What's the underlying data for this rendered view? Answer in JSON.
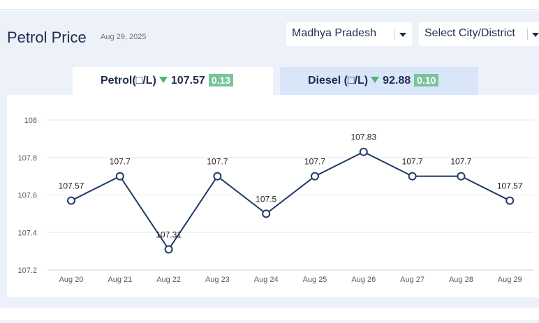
{
  "header": {
    "title": "Petrol Price",
    "date": "Aug 29, 2025"
  },
  "filters": {
    "state": "Madhya Pradesh",
    "city_placeholder": "Select City/District"
  },
  "tabs": [
    {
      "fuel": "Petrol",
      "unit": "(□/L)",
      "price": "107.57",
      "change": "0.13",
      "direction": "down",
      "active": true
    },
    {
      "fuel": "Diesel",
      "unit": " (□/L)",
      "price": "92.88",
      "change": "0.10",
      "direction": "down",
      "active": false
    }
  ],
  "colors": {
    "line": "#1f3a66",
    "down_indicator": "#49b57c",
    "change_badge": "#79c49a",
    "active_tab": "#ffffff",
    "inactive_tab": "#d9e5f8"
  },
  "chart_data": {
    "type": "line",
    "title": "",
    "xlabel": "",
    "ylabel": "",
    "categories": [
      "Aug 20",
      "Aug 21",
      "Aug 22",
      "Aug 23",
      "Aug 24",
      "Aug 25",
      "Aug 26",
      "Aug 27",
      "Aug 28",
      "Aug 29"
    ],
    "series": [
      {
        "values": [
          107.57,
          107.7,
          107.31,
          107.7,
          107.5,
          107.7,
          107.83,
          107.7,
          107.7,
          107.57
        ]
      }
    ],
    "data_labels": [
      "107.57",
      "107.7",
      "107.31",
      "107.7",
      "107.5",
      "107.7",
      "107.83",
      "107.7",
      "107.7",
      "107.57"
    ],
    "yticks": [
      107.2,
      107.4,
      107.6,
      107.8,
      108
    ],
    "ytick_labels": [
      "107.2",
      "107.4",
      "107.6",
      "107.8",
      "108"
    ],
    "ylim": [
      107.2,
      108
    ],
    "grid": true,
    "legend": "none"
  }
}
